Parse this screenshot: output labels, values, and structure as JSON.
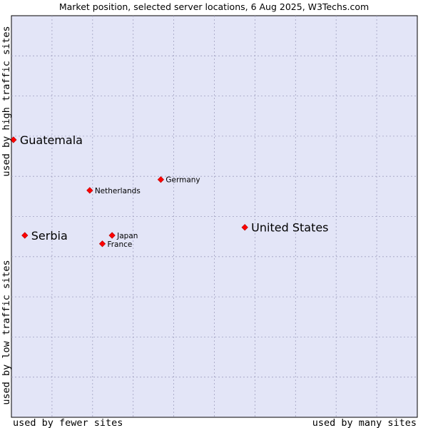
{
  "chart_data": {
    "type": "scatter",
    "title": "Market position, selected server locations, 6 Aug 2025, W3Techs.com",
    "xlabel_low": "used by fewer sites",
    "xlabel_high": "used by many sites",
    "ylabel_low": "used by low traffic sites",
    "ylabel_high": "used by high traffic sites",
    "xlim": [
      0,
      100
    ],
    "ylim": [
      0,
      100
    ],
    "grid": true,
    "point_color": "#ff0000",
    "plot_background": "#e3e5f7",
    "grid_color": "#a0a0c0",
    "points": [
      {
        "label": "Guatemala",
        "x": 0.5,
        "y": 69.1,
        "emphasis": true
      },
      {
        "label": "Germany",
        "x": 36.8,
        "y": 59.2,
        "emphasis": false
      },
      {
        "label": "Netherlands",
        "x": 19.3,
        "y": 56.5,
        "emphasis": false
      },
      {
        "label": "United States",
        "x": 57.5,
        "y": 47.3,
        "emphasis": true
      },
      {
        "label": "Serbia",
        "x": 3.3,
        "y": 45.3,
        "emphasis": true
      },
      {
        "label": "Japan",
        "x": 24.8,
        "y": 45.3,
        "emphasis": false
      },
      {
        "label": "France",
        "x": 22.4,
        "y": 43.2,
        "emphasis": false
      }
    ]
  }
}
